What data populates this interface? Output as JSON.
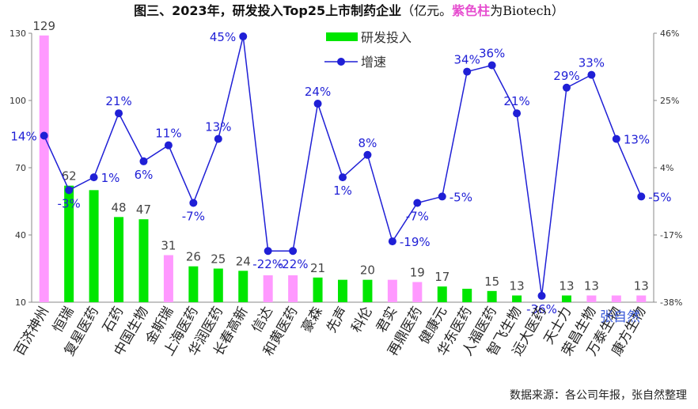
{
  "colors": {
    "rd_bar": "#00e600",
    "biotech_bar": "#ff99ff",
    "growth_line": "#1f1fd6",
    "axis": "#888888",
    "text_dark": "#333333",
    "purple": "#e64ccf",
    "watermark": "#3b5bd9"
  },
  "title": {
    "main": "图三、2023年，研发投入Top25上市制药企业",
    "unit": "（亿元。",
    "highlight": "紫色柱",
    "tail": "为Biotech）"
  },
  "source": "数据来源：各公司年报，张自然整理",
  "watermark": "张自然",
  "chart_data": {
    "type": "bar",
    "title": "图三、2023年，研发投入Top25上市制药企业（亿元。紫色柱为Biotech）",
    "categories": [
      "百济神州",
      "恒瑞",
      "复星医药",
      "石药",
      "中国生物",
      "金斯瑞",
      "上海医药",
      "华润医药",
      "长春高新",
      "信达",
      "和黄医药",
      "豪森",
      "先声",
      "科伦",
      "君实",
      "再鼎医药",
      "健康元",
      "华东医药",
      "人福医药",
      "智飞生物",
      "远大医药",
      "天士力",
      "荣昌生物",
      "万泰生物",
      "康方生物"
    ],
    "is_biotech": [
      true,
      false,
      false,
      false,
      false,
      true,
      false,
      false,
      false,
      true,
      true,
      false,
      false,
      false,
      true,
      true,
      false,
      false,
      false,
      false,
      false,
      false,
      true,
      true,
      true
    ],
    "series": [
      {
        "name": "研发投入",
        "axis": "left",
        "values": [
          129,
          62,
          60,
          48,
          47,
          31,
          26,
          25,
          24,
          22,
          22,
          21,
          20,
          20,
          20,
          19,
          17,
          16,
          15,
          13,
          10,
          13,
          13,
          13,
          13
        ],
        "labels": [
          "129",
          "62",
          "",
          "48",
          "47",
          "31",
          "26",
          "25",
          "24",
          "",
          "",
          "21",
          "",
          "20",
          "",
          "19",
          "17",
          "",
          "15",
          "13",
          "",
          "13",
          "13",
          "",
          "13"
        ]
      },
      {
        "name": "增速",
        "axis": "right",
        "unit": "%",
        "values": [
          14,
          -3,
          1,
          21,
          6,
          11,
          -7,
          13,
          45,
          -22,
          -22,
          24,
          1,
          8,
          -19,
          -7,
          -5,
          34,
          36,
          21,
          -36,
          29,
          33,
          13,
          -5
        ],
        "labels": [
          "14%",
          "-3%",
          "1%",
          "21%",
          "6%",
          "11%",
          "-7%",
          "13%",
          "45%",
          "-22%",
          "-22%",
          "24%",
          "1%",
          "8%",
          "-19%",
          "-7%",
          "-5%",
          "34%",
          "36%",
          "21%",
          "-36%",
          "29%",
          "33%",
          "13%",
          "-5%"
        ]
      }
    ],
    "ylim_left": [
      10,
      130
    ],
    "yticks_left": [
      "130",
      "100",
      "70",
      "40",
      "10"
    ],
    "ylim_right": [
      -38,
      46
    ],
    "yticks_right": [
      "46%",
      "25%",
      "4%",
      "-17%",
      "-38%"
    ],
    "legend": [
      "研发投入",
      "增速"
    ],
    "legend_position": "top-center",
    "grid": false
  }
}
